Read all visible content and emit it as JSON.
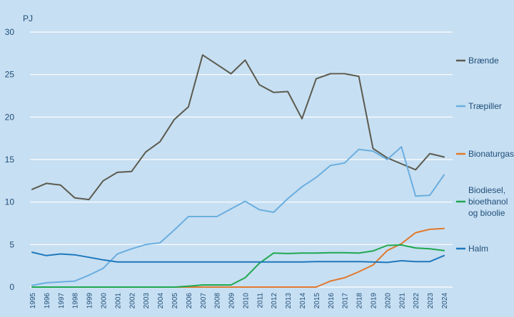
{
  "colors": {
    "background": "#c7dff2",
    "gridline": "#ffffff",
    "text": "#1f4e79"
  },
  "chart_data": {
    "type": "line",
    "unit_label": "PJ",
    "title": "",
    "xlabel": "",
    "ylabel": "",
    "grid": true,
    "legend_placement": "right",
    "ylim": [
      0,
      30
    ],
    "yticks": [
      0,
      5,
      10,
      15,
      20,
      25,
      30
    ],
    "categories": [
      "1995",
      "1996",
      "1997",
      "1998",
      "1999",
      "2000",
      "2001",
      "2002",
      "2003",
      "2004",
      "2005",
      "2006",
      "2007",
      "2008",
      "2009",
      "2010",
      "2011",
      "2012",
      "2013",
      "2014",
      "2015",
      "2016",
      "2017",
      "2018",
      "2019",
      "2020",
      "2021",
      "2022",
      "2023",
      "2024"
    ],
    "series": [
      {
        "name": "Brænde",
        "color": "#5b5b4f",
        "values": [
          11.5,
          12.2,
          12.0,
          10.5,
          10.3,
          12.5,
          13.5,
          13.6,
          15.9,
          17.1,
          19.7,
          21.2,
          27.3,
          26.2,
          25.1,
          26.7,
          23.8,
          22.9,
          23.0,
          19.8,
          24.5,
          25.1,
          25.1,
          24.8,
          16.3,
          15.2,
          14.5,
          13.8,
          15.7,
          15.3
        ]
      },
      {
        "name": "Træpiller",
        "color": "#6aaee0",
        "values": [
          0.2,
          0.5,
          0.6,
          0.7,
          1.4,
          2.2,
          3.9,
          4.5,
          5.0,
          5.2,
          6.7,
          8.3,
          8.3,
          8.3,
          9.2,
          10.1,
          9.1,
          8.8,
          10.4,
          11.8,
          12.9,
          14.3,
          14.6,
          16.2,
          16.0,
          15.0,
          16.5,
          10.7,
          10.8,
          13.2
        ]
      },
      {
        "name": "Bionaturgas",
        "color": "#e07a2e",
        "values": [
          0,
          0,
          0,
          0,
          0,
          0,
          0,
          0,
          0,
          0,
          0,
          0,
          0,
          0,
          0,
          0,
          0,
          0,
          0,
          0,
          0,
          0.7,
          1.1,
          1.8,
          2.6,
          4.3,
          5.1,
          6.4,
          6.8,
          6.9
        ]
      },
      {
        "name": "Biodiesel, bioethanol og bioolie",
        "label_lines": [
          "Biodiesel,",
          "bioethanol",
          "og bioolie"
        ],
        "color": "#1fa84f",
        "values": [
          0,
          0,
          0,
          0,
          0,
          0,
          0,
          0,
          0,
          0,
          0,
          0.1,
          0.25,
          0.25,
          0.25,
          1.1,
          2.8,
          4.0,
          3.95,
          4.0,
          4.0,
          4.05,
          4.05,
          4.0,
          4.25,
          4.9,
          4.95,
          4.6,
          4.5,
          4.3
        ]
      },
      {
        "name": "Halm",
        "color": "#1d78bd",
        "values": [
          4.1,
          3.7,
          3.9,
          3.8,
          3.5,
          3.2,
          2.95,
          2.95,
          2.95,
          2.95,
          2.95,
          2.95,
          2.95,
          2.95,
          2.95,
          2.95,
          2.95,
          2.95,
          2.95,
          2.95,
          3.0,
          3.0,
          3.0,
          3.0,
          2.95,
          2.9,
          3.1,
          3.0,
          3.0,
          3.7
        ]
      }
    ]
  }
}
